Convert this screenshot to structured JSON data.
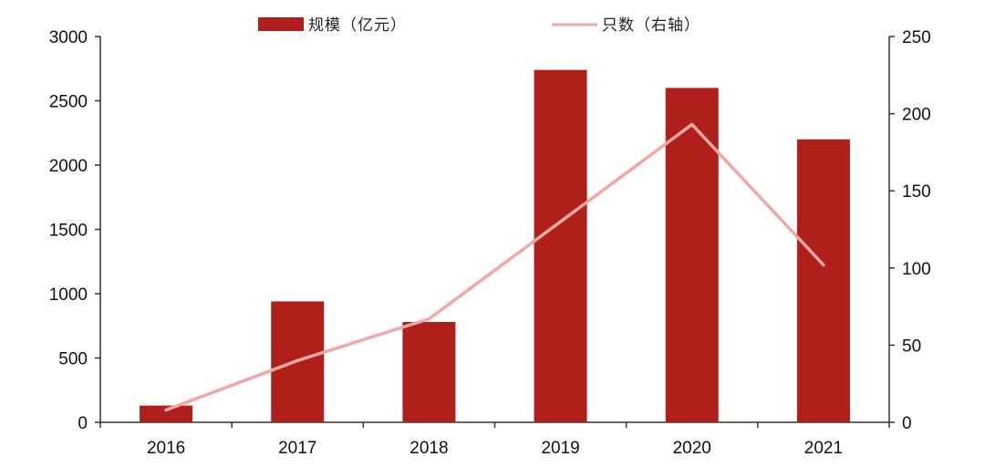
{
  "chart_data": {
    "type": "bar",
    "categories": [
      "2016",
      "2017",
      "2018",
      "2019",
      "2020",
      "2021"
    ],
    "series": [
      {
        "name": "规模（亿元）",
        "type": "bar",
        "axis": "left",
        "values": [
          130,
          940,
          780,
          2740,
          2600,
          2200
        ],
        "color": "#b01f1a"
      },
      {
        "name": "只数（右轴）",
        "type": "line",
        "axis": "right",
        "values": [
          8,
          40,
          67,
          130,
          193,
          102
        ],
        "color": "#f2a7a4"
      }
    ],
    "y_left": {
      "min": 0,
      "max": 3000,
      "ticks": [
        "0",
        "500",
        "1000",
        "1500",
        "2000",
        "2500",
        "3000"
      ]
    },
    "y_right": {
      "min": 0,
      "max": 250,
      "ticks": [
        "0",
        "50",
        "100",
        "150",
        "200",
        "250"
      ]
    },
    "grid": false,
    "legend_position": "top"
  }
}
